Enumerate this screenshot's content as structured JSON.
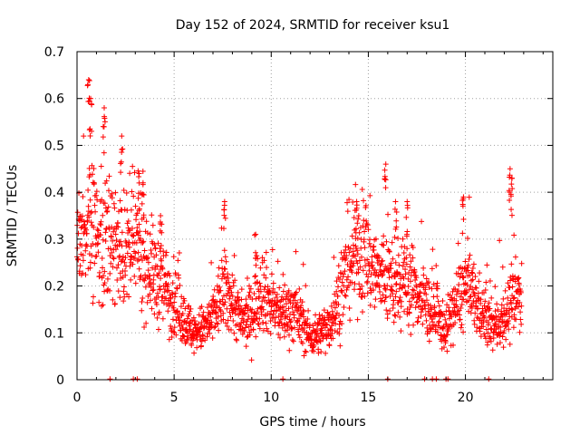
{
  "chart_data": {
    "type": "scatter",
    "title": "Day 152 of 2024, SRMTID for receiver ksu1",
    "xlabel": "GPS time / hours",
    "ylabel": "SRMTID / TECUs",
    "xlim": [
      0,
      24.5
    ],
    "ylim": [
      0,
      0.7
    ],
    "xticks": [
      "0",
      "5",
      "10",
      "15",
      "20"
    ],
    "yticks": [
      "0",
      "0.1",
      "0.2",
      "0.3",
      "0.4",
      "0.5",
      "0.6",
      "0.7"
    ],
    "grid": true,
    "marker": "plus",
    "color": "#ff0000",
    "series": [
      {
        "name": "SRMTID",
        "profile": [
          [
            0.0,
            0.28
          ],
          [
            0.3,
            0.31
          ],
          [
            0.6,
            0.33
          ],
          [
            1.0,
            0.3
          ],
          [
            1.5,
            0.31
          ],
          [
            2.0,
            0.29
          ],
          [
            2.5,
            0.27
          ],
          [
            3.0,
            0.29
          ],
          [
            3.5,
            0.26
          ],
          [
            4.0,
            0.22
          ],
          [
            4.5,
            0.2
          ],
          [
            5.0,
            0.17
          ],
          [
            5.5,
            0.13
          ],
          [
            6.0,
            0.1
          ],
          [
            6.5,
            0.11
          ],
          [
            7.0,
            0.13
          ],
          [
            7.5,
            0.19
          ],
          [
            8.0,
            0.17
          ],
          [
            8.5,
            0.12
          ],
          [
            9.0,
            0.14
          ],
          [
            9.5,
            0.2
          ],
          [
            10.0,
            0.16
          ],
          [
            10.5,
            0.14
          ],
          [
            11.0,
            0.15
          ],
          [
            11.5,
            0.13
          ],
          [
            12.0,
            0.09
          ],
          [
            12.5,
            0.1
          ],
          [
            13.0,
            0.12
          ],
          [
            13.5,
            0.17
          ],
          [
            14.0,
            0.25
          ],
          [
            14.5,
            0.28
          ],
          [
            15.0,
            0.26
          ],
          [
            15.5,
            0.22
          ],
          [
            16.0,
            0.22
          ],
          [
            16.5,
            0.19
          ],
          [
            17.0,
            0.21
          ],
          [
            17.5,
            0.19
          ],
          [
            18.0,
            0.16
          ],
          [
            18.5,
            0.13
          ],
          [
            19.0,
            0.11
          ],
          [
            19.5,
            0.16
          ],
          [
            20.0,
            0.2
          ],
          [
            20.5,
            0.17
          ],
          [
            21.0,
            0.13
          ],
          [
            21.5,
            0.11
          ],
          [
            22.0,
            0.14
          ],
          [
            22.5,
            0.16
          ],
          [
            22.9,
            0.19
          ]
        ],
        "spikes": [
          [
            0.6,
            0.64
          ],
          [
            0.7,
            0.6
          ],
          [
            1.4,
            0.58
          ],
          [
            2.3,
            0.52
          ],
          [
            3.2,
            0.44
          ],
          [
            3.4,
            0.42
          ],
          [
            4.3,
            0.35
          ],
          [
            7.6,
            0.38
          ],
          [
            9.2,
            0.31
          ],
          [
            14.4,
            0.38
          ],
          [
            15.9,
            0.46
          ],
          [
            16.4,
            0.38
          ],
          [
            17.0,
            0.38
          ],
          [
            19.9,
            0.39
          ],
          [
            22.3,
            0.45
          ],
          [
            22.4,
            0.43
          ]
        ],
        "zero_markers": [
          1.7,
          2.9,
          3.1,
          10.6,
          16.0,
          17.9,
          18.3,
          18.5,
          19.0,
          19.1,
          21.2
        ]
      }
    ]
  }
}
